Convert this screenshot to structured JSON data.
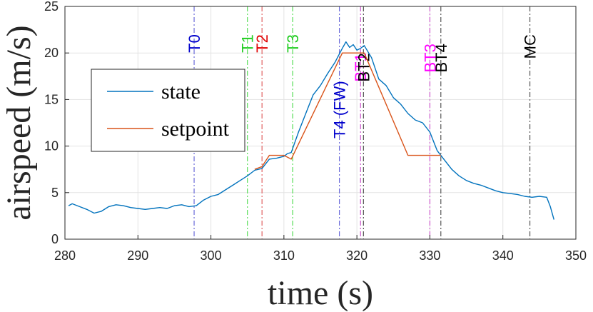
{
  "chart_data": {
    "type": "line",
    "title": "",
    "xlabel": "time (s)",
    "ylabel": "airspeed (m/s)",
    "xlim": [
      280,
      350
    ],
    "ylim": [
      0,
      25
    ],
    "x_ticks": [
      280,
      290,
      300,
      310,
      320,
      330,
      340,
      350
    ],
    "y_ticks": [
      0,
      5,
      10,
      15,
      20,
      25
    ],
    "grid": true,
    "legend_placement": "center-left",
    "series": [
      {
        "name": "state",
        "color": "#0072BD",
        "x": [
          280.5,
          281,
          282,
          283,
          284,
          285,
          286,
          287,
          288,
          289,
          290,
          291,
          292,
          293,
          294,
          295,
          296,
          297,
          298,
          299,
          300,
          301,
          302,
          303,
          304,
          305,
          306,
          307,
          308,
          309,
          310,
          310.5,
          311,
          312,
          313,
          314,
          315,
          316,
          317,
          318,
          318.5,
          319,
          319.5,
          320,
          320.5,
          321,
          322,
          323,
          324,
          325,
          326,
          327,
          328,
          329,
          330,
          331,
          332,
          333,
          334,
          335,
          336,
          337,
          338,
          339,
          340,
          341,
          342,
          343,
          344,
          345,
          346,
          346.5,
          347
        ],
        "y": [
          3.6,
          3.8,
          3.5,
          3.2,
          2.8,
          3.0,
          3.5,
          3.7,
          3.6,
          3.4,
          3.3,
          3.2,
          3.3,
          3.4,
          3.3,
          3.6,
          3.7,
          3.5,
          3.6,
          4.2,
          4.6,
          4.8,
          5.3,
          5.8,
          6.3,
          6.8,
          7.4,
          7.6,
          8.6,
          8.7,
          8.9,
          9.2,
          9.3,
          11.5,
          13.5,
          15.5,
          16.5,
          17.8,
          19.0,
          20.5,
          21.2,
          20.6,
          20.9,
          20.3,
          20.5,
          20.8,
          19.5,
          17.2,
          16.5,
          15.2,
          14.5,
          13.5,
          12.8,
          12.5,
          11.5,
          9.5,
          8.5,
          7.5,
          6.8,
          6.3,
          6.0,
          5.8,
          5.5,
          5.2,
          5.0,
          4.9,
          4.8,
          4.6,
          4.5,
          4.6,
          4.5,
          3.5,
          2.1
        ]
      },
      {
        "name": "setpoint",
        "color": "#D95319",
        "x": [
          306.0,
          307.0,
          308.0,
          310.0,
          311.0,
          318.0,
          321.0,
          327.0,
          330.0,
          331.5
        ],
        "y": [
          7.5,
          7.8,
          9.0,
          9.0,
          8.6,
          20.0,
          20.0,
          9.0,
          9.0,
          9.0
        ]
      }
    ],
    "events": [
      {
        "label": "T0",
        "x": 297.7,
        "color": "#0000CC",
        "line_color": "#6A6AD9",
        "label_y": 22
      },
      {
        "label": "T1",
        "x": 305.0,
        "color": "#22CC22",
        "line_color": "#55DD55",
        "label_y": 22
      },
      {
        "label": "T2",
        "x": 307.0,
        "color": "#E00000",
        "line_color": "#E06060",
        "label_y": 22
      },
      {
        "label": "T3",
        "x": 311.2,
        "color": "#22CC22",
        "line_color": "#55DD55",
        "label_y": 22
      },
      {
        "label": "T4 (FW)",
        "x": 317.6,
        "color": "#0000CC",
        "line_color": "#6A6AD9",
        "label_y": 17
      },
      {
        "label": "BT1",
        "x": 320.5,
        "color": "#FF00FF",
        "line_color": "#CC55CC",
        "label_y": 20
      },
      {
        "label": "BT2",
        "x": 320.9,
        "color": "#000000",
        "line_color": "#555555",
        "label_y": 20
      },
      {
        "label": "BT3",
        "x": 330.0,
        "color": "#FF00FF",
        "line_color": "#CC55CC",
        "label_y": 21
      },
      {
        "label": "BT4",
        "x": 331.5,
        "color": "#000000",
        "line_color": "#555555",
        "label_y": 21
      },
      {
        "label": "MC",
        "x": 343.7,
        "color": "#000000",
        "line_color": "#555555",
        "label_y": 22
      }
    ]
  }
}
